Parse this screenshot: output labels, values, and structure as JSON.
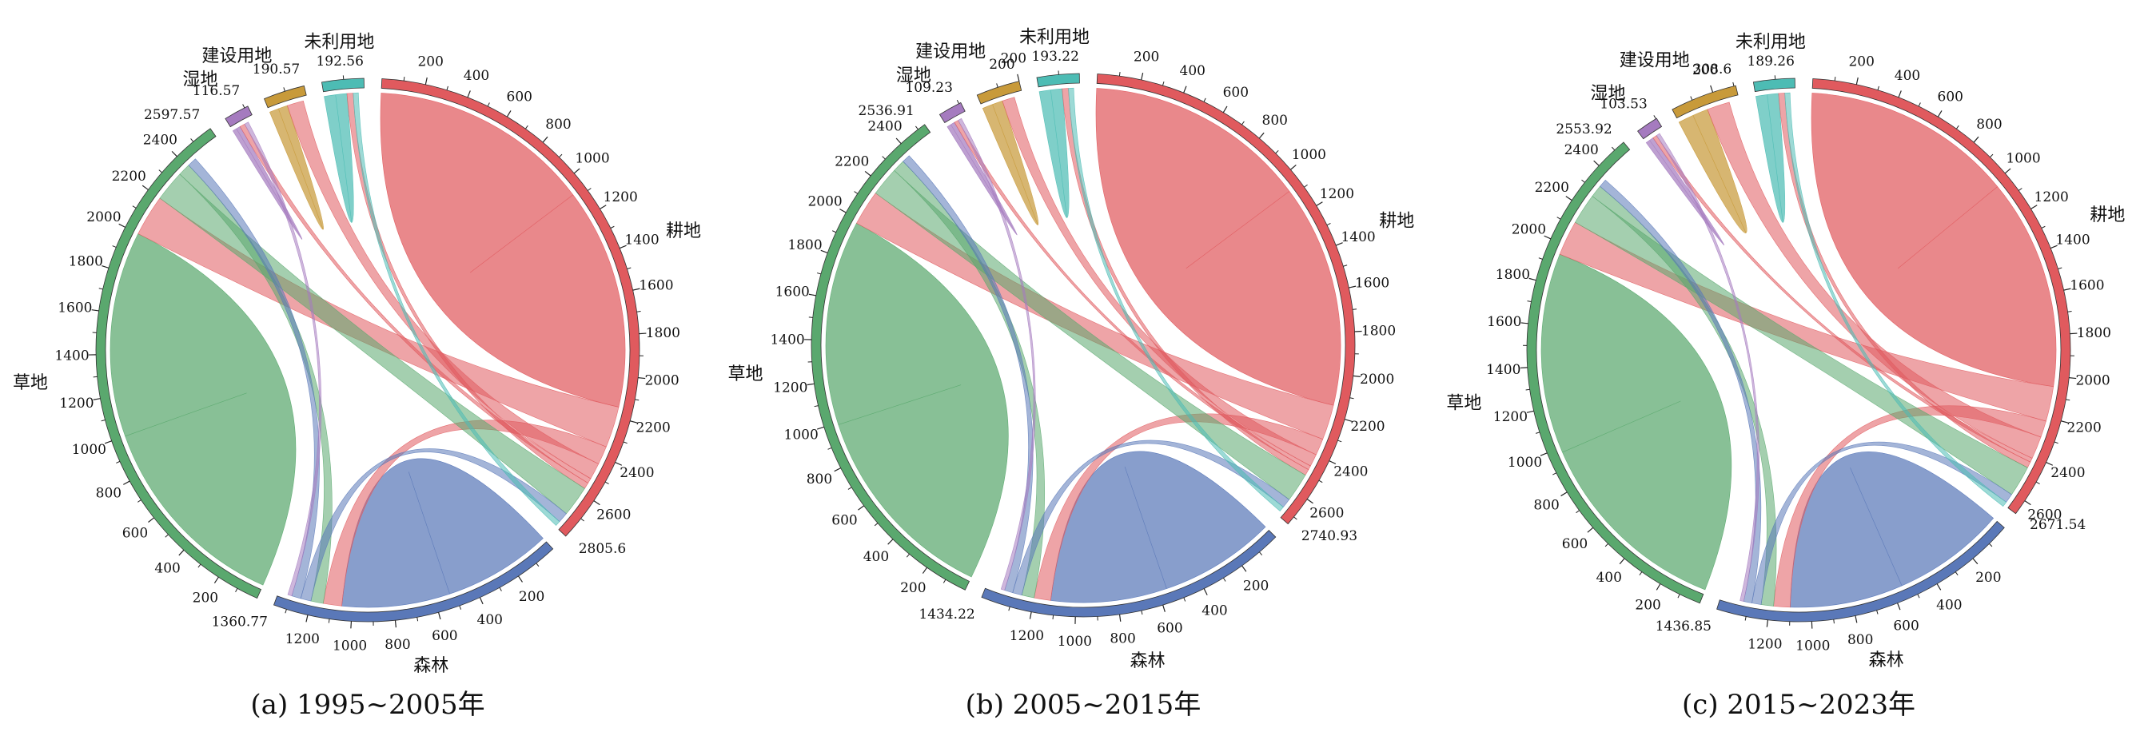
{
  "figure": {
    "colors": {
      "耕地": "#e05a5e",
      "森林": "#5a78b8",
      "草地": "#5aa86e",
      "湿地": "#a57bbf",
      "建设用地": "#c89a3a",
      "未利用地": "#4dbcb4"
    },
    "panel_order": [
      "耕地",
      "森林",
      "草地",
      "湿地",
      "建设用地",
      "未利用地"
    ]
  },
  "chart_data": [
    {
      "type": "chord",
      "title": "(a) 1995~2005年",
      "categories": [
        {
          "name": "耕地",
          "total": 2805.6,
          "ticks": [
            200,
            400,
            600,
            800,
            1000,
            1200,
            1400,
            1600,
            1800,
            2000,
            2200,
            2400,
            2600
          ],
          "self_flow": 2150
        },
        {
          "name": "森林",
          "total": 1360.77,
          "ticks": [
            200,
            400,
            600,
            800,
            1000,
            1200
          ],
          "self_flow": 1050
        },
        {
          "name": "草地",
          "total": 2597.57,
          "ticks": [
            200,
            400,
            600,
            800,
            1000,
            1200,
            1400,
            1600,
            1800,
            2000,
            2200,
            2400
          ],
          "self_flow": 2000
        },
        {
          "name": "湿地",
          "total": 116.57,
          "ticks": [],
          "self_flow": 40
        },
        {
          "name": "建设用地",
          "total": 190.57,
          "ticks": [],
          "self_flow": 90
        },
        {
          "name": "未利用地",
          "total": 192.56,
          "ticks": [],
          "self_flow": 110
        }
      ],
      "flows": [
        {
          "from": "耕地",
          "to": "草地",
          "value": 200
        },
        {
          "from": "耕地",
          "to": "森林",
          "value": 90
        },
        {
          "from": "耕地",
          "to": "建设用地",
          "value": 80
        },
        {
          "from": "耕地",
          "to": "湿地",
          "value": 25
        },
        {
          "from": "耕地",
          "to": "未利用地",
          "value": 30
        },
        {
          "from": "草地",
          "to": "耕地",
          "value": 150
        },
        {
          "from": "草地",
          "to": "森林",
          "value": 60
        },
        {
          "from": "森林",
          "to": "耕地",
          "value": 50
        },
        {
          "from": "森林",
          "to": "草地",
          "value": 45
        },
        {
          "from": "湿地",
          "to": "森林",
          "value": 20
        },
        {
          "from": "未利用地",
          "to": "耕地",
          "value": 25
        }
      ]
    },
    {
      "type": "chord",
      "title": "(b) 2005~2015年",
      "categories": [
        {
          "name": "耕地",
          "total": 2740.93,
          "ticks": [
            200,
            400,
            600,
            800,
            1000,
            1200,
            1400,
            1600,
            1800,
            2000,
            2200,
            2400,
            2600
          ],
          "self_flow": 2150
        },
        {
          "name": "森林",
          "total": 1434.22,
          "ticks": [
            200,
            400,
            600,
            800,
            1000,
            1200
          ],
          "self_flow": 1120
        },
        {
          "name": "草地",
          "total": 2536.91,
          "ticks": [
            200,
            400,
            600,
            800,
            1000,
            1200,
            1400,
            1600,
            1800,
            2000,
            2200,
            2400
          ],
          "self_flow": 1980
        },
        {
          "name": "湿地",
          "total": 109.23,
          "ticks": [],
          "self_flow": 40
        },
        {
          "name": "建设用地",
          "total": 200,
          "ticks": [
            200
          ],
          "self_flow": 100
        },
        {
          "name": "未利用地",
          "total": 193.22,
          "ticks": [],
          "self_flow": 110
        }
      ],
      "flows": [
        {
          "from": "耕地",
          "to": "草地",
          "value": 170
        },
        {
          "from": "耕地",
          "to": "森林",
          "value": 80
        },
        {
          "from": "耕地",
          "to": "建设用地",
          "value": 60
        },
        {
          "from": "耕地",
          "to": "湿地",
          "value": 20
        },
        {
          "from": "耕地",
          "to": "未利用地",
          "value": 30
        },
        {
          "from": "草地",
          "to": "耕地",
          "value": 140
        },
        {
          "from": "草地",
          "to": "森林",
          "value": 60
        },
        {
          "from": "森林",
          "to": "耕地",
          "value": 45
        },
        {
          "from": "森林",
          "to": "草地",
          "value": 40
        },
        {
          "from": "湿地",
          "to": "森林",
          "value": 18
        },
        {
          "from": "未利用地",
          "to": "耕地",
          "value": 25
        }
      ]
    },
    {
      "type": "chord",
      "title": "(c) 2015~2023年",
      "categories": [
        {
          "name": "耕地",
          "total": 2671.54,
          "ticks": [
            200,
            400,
            600,
            800,
            1000,
            1200,
            1400,
            1600,
            1800,
            2000,
            2200,
            2400,
            2600
          ],
          "self_flow": 2050
        },
        {
          "name": "森林",
          "total": 1436.85,
          "ticks": [
            200,
            400,
            600,
            800,
            1000,
            1200
          ],
          "self_flow": 1100
        },
        {
          "name": "草地",
          "total": 2553.92,
          "ticks": [
            200,
            400,
            600,
            800,
            1000,
            1200,
            1400,
            1600,
            1800,
            2000,
            2200,
            2400
          ],
          "self_flow": 1950
        },
        {
          "name": "湿地",
          "total": 103.53,
          "ticks": [],
          "self_flow": 40
        },
        {
          "name": "建设用地",
          "total": 308.6,
          "ticks": [
            200
          ],
          "self_flow": 150
        },
        {
          "name": "未利用地",
          "total": 189.26,
          "ticks": [],
          "self_flow": 110
        }
      ],
      "flows": [
        {
          "from": "耕地",
          "to": "草地",
          "value": 170
        },
        {
          "from": "耕地",
          "to": "森林",
          "value": 80
        },
        {
          "from": "耕地",
          "to": "建设用地",
          "value": 110
        },
        {
          "from": "耕地",
          "to": "湿地",
          "value": 20
        },
        {
          "from": "耕地",
          "to": "未利用地",
          "value": 30
        },
        {
          "from": "草地",
          "to": "耕地",
          "value": 150
        },
        {
          "from": "草地",
          "to": "森林",
          "value": 60
        },
        {
          "from": "森林",
          "to": "耕地",
          "value": 45
        },
        {
          "from": "森林",
          "to": "草地",
          "value": 40
        },
        {
          "from": "湿地",
          "to": "森林",
          "value": 18
        },
        {
          "from": "未利用地",
          "to": "耕地",
          "value": 25
        }
      ]
    }
  ]
}
